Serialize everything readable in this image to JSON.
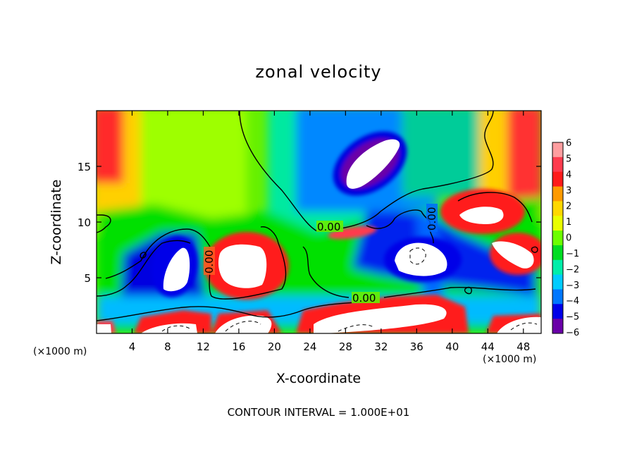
{
  "chart_data": {
    "type": "heatmap",
    "title": "zonal velocity",
    "xlabel": "X-coordinate",
    "ylabel": "Z-coordinate",
    "x_unit_label": "(×1000 m)",
    "xlim": [
      0,
      50
    ],
    "ylim": [
      0,
      20
    ],
    "x_ticks": [
      4,
      8,
      12,
      16,
      20,
      24,
      28,
      32,
      36,
      40,
      44,
      48
    ],
    "y_ticks": [
      5,
      10,
      15
    ],
    "colorbar": {
      "levels": [
        6,
        5,
        4,
        3,
        2,
        1,
        0,
        -1,
        -2,
        -3,
        -4,
        -5,
        -6
      ],
      "colors": [
        "#ff9ea0",
        "#ff3b4e",
        "#ff1a1a",
        "#ff9a00",
        "#ffd800",
        "#e9ff00",
        "#6cff00",
        "#00dd22",
        "#00eeaa",
        "#00ccff",
        "#0077ff",
        "#0000e8",
        "#6a00a8"
      ]
    },
    "out_of_range_color": "#ffffff",
    "contour_label": "0.00",
    "footnote": "CONTOUR INTERVAL = 1.000E+01"
  }
}
